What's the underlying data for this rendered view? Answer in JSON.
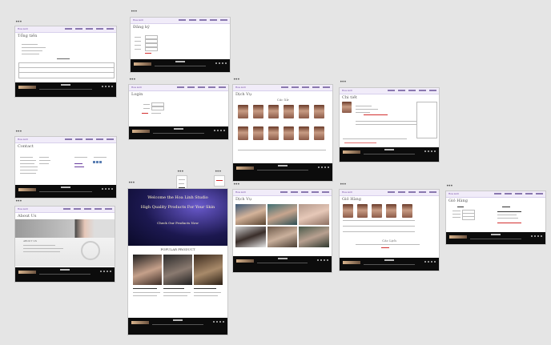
{
  "canvas": {
    "background": "#e5e5e5",
    "accent": "#6b3fa0",
    "nav_bg": "#f1ecf9",
    "footer_bg": "#0c0c0c"
  },
  "frames": {
    "tong_tien": {
      "title": "Tổng tiền"
    },
    "dang_ky": {
      "title": "Đăng ký"
    },
    "login": {
      "title": "Login"
    },
    "danh_sach_1": {
      "title": "Dịch Vụ",
      "section_heading": "Các Xử"
    },
    "chi_tiet": {
      "title": "Chi tiết"
    },
    "contact": {
      "title": "Contact"
    },
    "about": {
      "title": "About Us",
      "section_heading": "ABOUT US"
    },
    "home": {
      "hero_lines": [
        "Welcome the Hoa Linh Studio",
        "High Quality Products For Your Skin",
        "Check Our Products Now"
      ],
      "section_heading": "POPULAR PRODUCT"
    },
    "danh_sach_2": {
      "title": "Dịch Vụ"
    },
    "gio_hang": {
      "title": "Giỏ Hàng",
      "section_heading": "Các Lịch"
    },
    "gio_hang_2": {
      "title": "Giỏ Hàng"
    }
  }
}
